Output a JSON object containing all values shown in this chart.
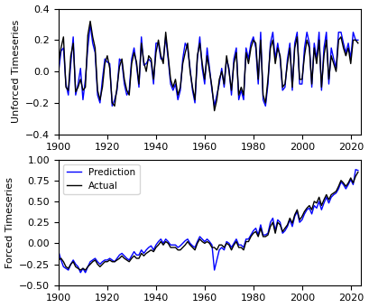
{
  "years": [
    1900,
    1901,
    1902,
    1903,
    1904,
    1905,
    1906,
    1907,
    1908,
    1909,
    1910,
    1911,
    1912,
    1913,
    1914,
    1915,
    1916,
    1917,
    1918,
    1919,
    1920,
    1921,
    1922,
    1923,
    1924,
    1925,
    1926,
    1927,
    1928,
    1929,
    1930,
    1931,
    1932,
    1933,
    1934,
    1935,
    1936,
    1937,
    1938,
    1939,
    1940,
    1941,
    1942,
    1943,
    1944,
    1945,
    1946,
    1947,
    1948,
    1949,
    1950,
    1951,
    1952,
    1953,
    1954,
    1955,
    1956,
    1957,
    1958,
    1959,
    1960,
    1961,
    1962,
    1963,
    1964,
    1965,
    1966,
    1967,
    1968,
    1969,
    1970,
    1971,
    1972,
    1973,
    1974,
    1975,
    1976,
    1977,
    1978,
    1979,
    1980,
    1981,
    1982,
    1983,
    1984,
    1985,
    1986,
    1987,
    1988,
    1989,
    1990,
    1991,
    1992,
    1993,
    1994,
    1995,
    1996,
    1997,
    1998,
    1999,
    2000,
    2001,
    2002,
    2003,
    2004,
    2005,
    2006,
    2007,
    2008,
    2009,
    2010,
    2011,
    2012,
    2013,
    2014,
    2015,
    2016,
    2017,
    2018,
    2019,
    2020,
    2021,
    2022,
    2023
  ],
  "unforced_actual": [
    0.05,
    0.15,
    0.22,
    -0.1,
    -0.12,
    0.1,
    0.18,
    -0.13,
    -0.1,
    -0.05,
    -0.12,
    -0.1,
    0.23,
    0.32,
    0.22,
    0.15,
    -0.12,
    -0.18,
    -0.1,
    0.05,
    0.1,
    0.02,
    -0.2,
    -0.22,
    -0.1,
    0.03,
    0.08,
    -0.05,
    -0.12,
    -0.15,
    0.05,
    0.12,
    0.06,
    -0.08,
    0.18,
    0.06,
    0.0,
    0.1,
    0.08,
    -0.05,
    0.12,
    0.2,
    0.1,
    0.05,
    0.25,
    0.1,
    -0.05,
    -0.1,
    -0.05,
    -0.15,
    -0.1,
    0.05,
    0.12,
    0.18,
    0.0,
    -0.1,
    -0.18,
    0.1,
    0.18,
    0.05,
    -0.05,
    0.1,
    0.0,
    -0.1,
    -0.25,
    -0.18,
    -0.05,
    0.0,
    -0.08,
    0.1,
    0.0,
    -0.12,
    0.05,
    0.12,
    -0.15,
    -0.1,
    -0.15,
    0.12,
    0.05,
    0.15,
    0.2,
    0.18,
    -0.05,
    0.2,
    -0.15,
    -0.2,
    -0.05,
    0.15,
    0.2,
    0.05,
    0.15,
    0.1,
    -0.1,
    -0.08,
    0.05,
    0.15,
    -0.1,
    0.15,
    0.22,
    -0.05,
    -0.05,
    0.1,
    0.2,
    0.15,
    -0.08,
    0.15,
    0.05,
    0.2,
    -0.1,
    0.1,
    0.2,
    -0.05,
    0.1,
    0.05,
    0.0,
    0.2,
    0.22,
    0.15,
    0.1,
    0.15,
    0.05,
    0.2,
    0.2,
    0.18
  ],
  "unforced_pred": [
    0.0,
    0.13,
    0.15,
    -0.08,
    -0.15,
    0.05,
    0.22,
    -0.15,
    -0.08,
    0.02,
    -0.18,
    -0.05,
    0.15,
    0.3,
    0.18,
    0.12,
    -0.15,
    -0.2,
    -0.05,
    0.08,
    0.06,
    0.05,
    -0.22,
    -0.18,
    -0.12,
    0.08,
    0.06,
    -0.08,
    -0.15,
    -0.12,
    0.08,
    0.15,
    0.04,
    -0.1,
    0.22,
    0.04,
    0.05,
    0.08,
    0.06,
    -0.08,
    0.18,
    0.18,
    0.08,
    0.08,
    0.22,
    0.08,
    -0.08,
    -0.12,
    -0.08,
    -0.18,
    -0.12,
    0.08,
    0.18,
    0.15,
    0.02,
    -0.12,
    -0.2,
    0.08,
    0.22,
    0.02,
    -0.08,
    0.15,
    0.02,
    -0.12,
    -0.22,
    -0.15,
    -0.08,
    0.02,
    -0.1,
    0.08,
    0.02,
    -0.15,
    0.08,
    0.15,
    -0.18,
    -0.12,
    -0.18,
    0.15,
    0.08,
    0.18,
    0.22,
    0.15,
    -0.08,
    0.25,
    -0.18,
    -0.22,
    -0.08,
    0.18,
    0.25,
    0.08,
    0.18,
    0.08,
    -0.12,
    -0.1,
    0.08,
    0.18,
    -0.12,
    0.18,
    0.25,
    -0.08,
    -0.08,
    0.15,
    0.25,
    0.18,
    -0.1,
    0.18,
    0.08,
    0.25,
    -0.12,
    0.15,
    0.25,
    -0.08,
    0.15,
    0.08,
    0.02,
    0.25,
    0.25,
    0.18,
    0.12,
    0.18,
    0.08,
    0.25,
    0.2,
    0.2
  ],
  "forced_actual": [
    -0.2,
    -0.18,
    -0.22,
    -0.28,
    -0.3,
    -0.25,
    -0.22,
    -0.28,
    -0.3,
    -0.32,
    -0.3,
    -0.32,
    -0.28,
    -0.25,
    -0.22,
    -0.2,
    -0.25,
    -0.28,
    -0.25,
    -0.22,
    -0.22,
    -0.2,
    -0.22,
    -0.22,
    -0.2,
    -0.18,
    -0.15,
    -0.18,
    -0.2,
    -0.22,
    -0.18,
    -0.15,
    -0.18,
    -0.18,
    -0.12,
    -0.15,
    -0.12,
    -0.1,
    -0.08,
    -0.1,
    -0.05,
    -0.02,
    0.02,
    -0.02,
    0.02,
    0.0,
    -0.05,
    -0.05,
    -0.05,
    -0.08,
    -0.08,
    -0.05,
    -0.02,
    0.02,
    -0.02,
    -0.05,
    -0.08,
    0.0,
    0.05,
    0.02,
    0.0,
    0.02,
    0.0,
    -0.05,
    -0.05,
    -0.08,
    -0.02,
    -0.02,
    -0.05,
    0.0,
    -0.02,
    -0.08,
    -0.02,
    0.02,
    -0.05,
    -0.05,
    -0.08,
    0.02,
    0.02,
    0.08,
    0.12,
    0.14,
    0.08,
    0.18,
    0.08,
    0.08,
    0.1,
    0.2,
    0.25,
    0.12,
    0.25,
    0.22,
    0.14,
    0.18,
    0.22,
    0.3,
    0.24,
    0.34,
    0.4,
    0.28,
    0.32,
    0.38,
    0.42,
    0.45,
    0.4,
    0.5,
    0.48,
    0.55,
    0.45,
    0.52,
    0.58,
    0.52,
    0.58,
    0.6,
    0.62,
    0.68,
    0.75,
    0.72,
    0.68,
    0.72,
    0.78,
    0.72,
    0.8,
    0.85
  ],
  "forced_pred": [
    -0.1,
    -0.2,
    -0.28,
    -0.3,
    -0.32,
    -0.25,
    -0.2,
    -0.25,
    -0.28,
    -0.35,
    -0.3,
    -0.35,
    -0.28,
    -0.22,
    -0.2,
    -0.18,
    -0.22,
    -0.25,
    -0.22,
    -0.2,
    -0.2,
    -0.18,
    -0.2,
    -0.22,
    -0.18,
    -0.14,
    -0.12,
    -0.15,
    -0.18,
    -0.2,
    -0.15,
    -0.1,
    -0.14,
    -0.14,
    -0.08,
    -0.12,
    -0.08,
    -0.05,
    -0.03,
    -0.08,
    -0.02,
    0.02,
    0.05,
    0.0,
    0.05,
    0.02,
    -0.02,
    -0.02,
    -0.02,
    -0.05,
    -0.03,
    0.0,
    0.03,
    0.05,
    0.0,
    -0.03,
    -0.05,
    0.02,
    0.08,
    0.05,
    0.02,
    0.05,
    0.02,
    -0.02,
    -0.32,
    -0.2,
    -0.08,
    -0.05,
    -0.08,
    0.02,
    0.0,
    -0.05,
    0.0,
    0.05,
    -0.02,
    -0.02,
    -0.05,
    0.05,
    0.05,
    0.1,
    0.15,
    0.18,
    0.1,
    0.22,
    0.1,
    0.1,
    0.12,
    0.25,
    0.3,
    0.15,
    0.28,
    0.25,
    0.12,
    0.15,
    0.2,
    0.28,
    0.2,
    0.32,
    0.38,
    0.25,
    0.28,
    0.35,
    0.4,
    0.42,
    0.35,
    0.45,
    0.42,
    0.5,
    0.4,
    0.48,
    0.55,
    0.48,
    0.55,
    0.58,
    0.6,
    0.65,
    0.73,
    0.7,
    0.65,
    0.7,
    0.76,
    0.7,
    0.88,
    0.87
  ],
  "unforced_ylim": [
    -0.4,
    0.4
  ],
  "unforced_yticks": [
    -0.4,
    -0.2,
    0.0,
    0.2,
    0.4
  ],
  "forced_ylim": [
    -0.5,
    1.0
  ],
  "forced_yticks": [
    -0.5,
    -0.25,
    0.0,
    0.25,
    0.5,
    0.75,
    1.0
  ],
  "xlim": [
    1900,
    2024
  ],
  "xticks": [
    1900,
    1920,
    1940,
    1960,
    1980,
    2000,
    2020
  ],
  "actual_color": "#000000",
  "pred_color": "#0000ff",
  "ylabel_unforced": "Unforced Timeseries",
  "ylabel_forced": "Forced Timeseries",
  "legend_pred": "Prediction",
  "legend_actual": "Actual",
  "linewidth": 1.0,
  "figsize": [
    4.09,
    3.41
  ],
  "dpi": 100
}
